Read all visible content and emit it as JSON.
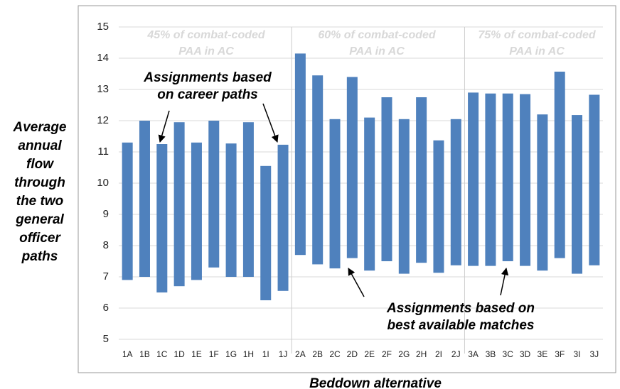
{
  "chart_data": {
    "type": "floating-bar",
    "categories": [
      "1A",
      "1B",
      "1C",
      "1D",
      "1E",
      "1F",
      "1G",
      "1H",
      "1I",
      "1J",
      "2A",
      "2B",
      "2C",
      "2D",
      "2E",
      "2F",
      "2G",
      "2H",
      "2I",
      "2J",
      "3A",
      "3B",
      "3C",
      "3D",
      "3E",
      "3F",
      "3I",
      "3J"
    ],
    "low": [
      6.9,
      7.0,
      6.5,
      6.7,
      6.9,
      7.3,
      7.0,
      7.0,
      6.25,
      6.55,
      7.7,
      7.4,
      7.27,
      7.6,
      7.2,
      7.5,
      7.1,
      7.45,
      7.13,
      7.37,
      7.35,
      7.35,
      7.5,
      7.35,
      7.2,
      7.6,
      7.1,
      7.37
    ],
    "high": [
      11.3,
      12.0,
      11.25,
      11.95,
      11.3,
      12.0,
      11.27,
      11.95,
      10.55,
      11.23,
      14.15,
      13.45,
      12.05,
      13.4,
      12.1,
      12.75,
      12.05,
      12.75,
      11.37,
      12.05,
      12.9,
      12.87,
      12.87,
      12.85,
      12.2,
      13.57,
      12.18,
      12.83
    ],
    "color": "#4f81bd",
    "ylim": [
      5,
      15
    ],
    "yticks": [
      5,
      6,
      7,
      8,
      9,
      10,
      11,
      12,
      13,
      14,
      15
    ],
    "grid": true,
    "ylabel": [
      "Average",
      "annual",
      "flow",
      "through",
      "the two",
      "general",
      "officer",
      "paths"
    ],
    "xlabel": "Beddown alternative",
    "groups": [
      [
        "45% of combat-coded",
        "PAA in AC"
      ],
      [
        "60% of combat-coded",
        "PAA in AC"
      ],
      [
        "75% of combat-coded",
        "PAA in AC"
      ]
    ],
    "annotations": [
      [
        "Assignments based",
        "on career paths"
      ],
      [
        "Assignments based on",
        "best available matches"
      ]
    ]
  }
}
